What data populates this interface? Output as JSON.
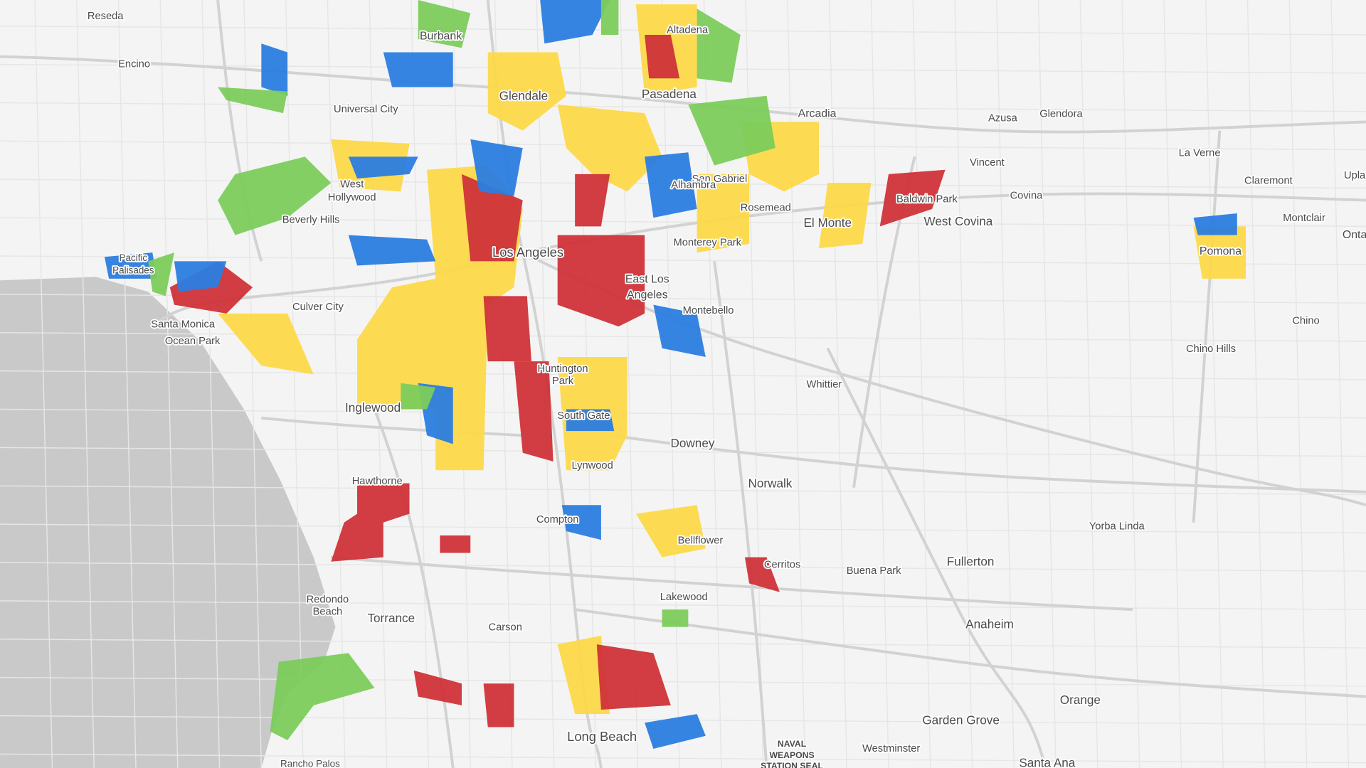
{
  "labels": [
    "Reseda",
    "Encino",
    "Burbank",
    "Altadena",
    "Glendale",
    "Pasadena",
    "Universal City",
    "Arcadia",
    "Azusa",
    "Glendora",
    "Vincent",
    "La Verne",
    "Claremont",
    "Upla",
    "West",
    "Hollywood",
    "San Gabriel",
    "Alhambra",
    "Rosemead",
    "Baldwin Park",
    "Covina",
    "Montclair",
    "Onta",
    "Beverly Hills",
    "El Monte",
    "West Covina",
    "Pacific",
    "Palisades",
    "Los Angeles",
    "Monterey Park",
    "Pomona",
    "East Los",
    "Angeles",
    "Culver City",
    "Montebello",
    "Chino",
    "Santa Monica",
    "Ocean Park",
    "Chino Hills",
    "Huntington",
    "Park",
    "Whittier",
    "Inglewood",
    "South Gate",
    "Downey",
    "Lynwood",
    "Hawthorne",
    "Norwalk",
    "Compton",
    "Yorba Linda",
    "Bellflower",
    "Cerritos",
    "Buena Park",
    "Fullerton",
    "Lakewood",
    "Redondo",
    "Beach",
    "Torrance",
    "Carson",
    "Anaheim",
    "Orange",
    "Garden Grove",
    "Long Beach",
    "NAVAL",
    "WEAPONS",
    "STATION SEAL",
    "Westminster",
    "Rancho Palos",
    "Santa Ana"
  ]
}
